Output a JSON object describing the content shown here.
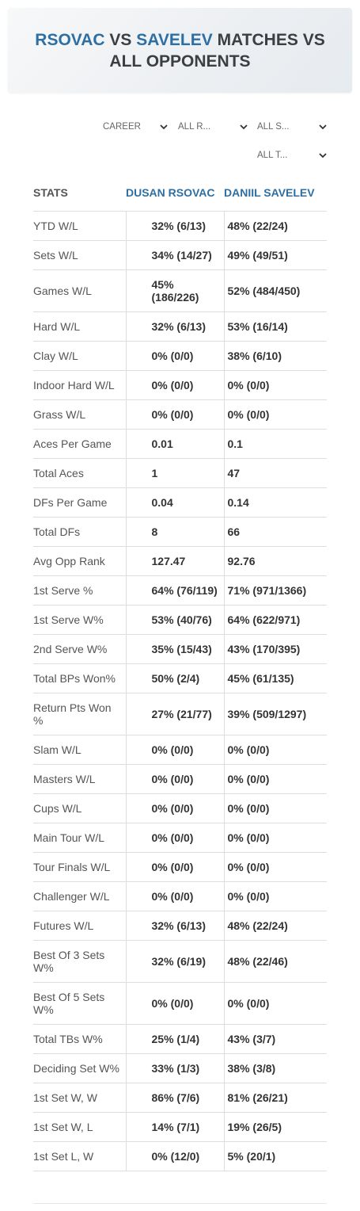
{
  "header": {
    "title": [
      {
        "text": "RSOVAC",
        "highlight": true
      },
      {
        "text": "VS",
        "highlight": false
      },
      {
        "text": "SAVELEV",
        "highlight": true
      },
      {
        "text": "MATCHES VS ALL OPPONENTS",
        "highlight": false
      }
    ]
  },
  "filters": [
    "CAREER",
    "ALL R...",
    "ALL S...",
    "ALL T..."
  ],
  "table": {
    "columns": [
      "STATS",
      "DUSAN RSOVAC",
      "DANIIL SAVELEV"
    ],
    "rows": [
      [
        "YTD W/L",
        "32% (6/13)",
        "48% (22/24)"
      ],
      [
        "Sets W/L",
        "34% (14/27)",
        "49% (49/51)"
      ],
      [
        "Games W/L",
        "45% (186/226)",
        "52% (484/450)"
      ],
      [
        "Hard W/L",
        "32% (6/13)",
        "53% (16/14)"
      ],
      [
        "Clay W/L",
        "0% (0/0)",
        "38% (6/10)"
      ],
      [
        "Indoor Hard W/L",
        "0% (0/0)",
        "0% (0/0)"
      ],
      [
        "Grass W/L",
        "0% (0/0)",
        "0% (0/0)"
      ],
      [
        "Aces Per Game",
        "0.01",
        "0.1"
      ],
      [
        "Total Aces",
        "1",
        "47"
      ],
      [
        "DFs Per Game",
        "0.04",
        "0.14"
      ],
      [
        "Total DFs",
        "8",
        "66"
      ],
      [
        "Avg Opp Rank",
        "127.47",
        "92.76"
      ],
      [
        "1st Serve %",
        "64% (76/119)",
        "71% (971/1366)"
      ],
      [
        "1st Serve W%",
        "53% (40/76)",
        "64% (622/971)"
      ],
      [
        "2nd Serve W%",
        "35% (15/43)",
        "43% (170/395)"
      ],
      [
        "Total BPs Won%",
        "50% (2/4)",
        "45% (61/135)"
      ],
      [
        "Return Pts Won %",
        "27% (21/77)",
        "39% (509/1297)"
      ],
      [
        "Slam W/L",
        "0% (0/0)",
        "0% (0/0)"
      ],
      [
        "Masters W/L",
        "0% (0/0)",
        "0% (0/0)"
      ],
      [
        "Cups W/L",
        "0% (0/0)",
        "0% (0/0)"
      ],
      [
        "Main Tour W/L",
        "0% (0/0)",
        "0% (0/0)"
      ],
      [
        "Tour Finals W/L",
        "0% (0/0)",
        "0% (0/0)"
      ],
      [
        "Challenger W/L",
        "0% (0/0)",
        "0% (0/0)"
      ],
      [
        "Futures W/L",
        "32% (6/13)",
        "48% (22/24)"
      ],
      [
        "Best Of 3 Sets W%",
        "32% (6/19)",
        "48% (22/46)"
      ],
      [
        "Best Of 5 Sets W%",
        "0% (0/0)",
        "0% (0/0)"
      ],
      [
        "Total TBs W%",
        "25% (1/4)",
        "43% (3/7)"
      ],
      [
        "Deciding Set W%",
        "33% (1/3)",
        "38% (3/8)"
      ],
      [
        "1st Set W, W",
        "86% (7/6)",
        "81% (26/21)"
      ],
      [
        "1st Set W, L",
        "14% (7/1)",
        "19% (26/5)"
      ],
      [
        "1st Set L, W",
        "0% (12/0)",
        "5% (20/1)"
      ]
    ]
  }
}
